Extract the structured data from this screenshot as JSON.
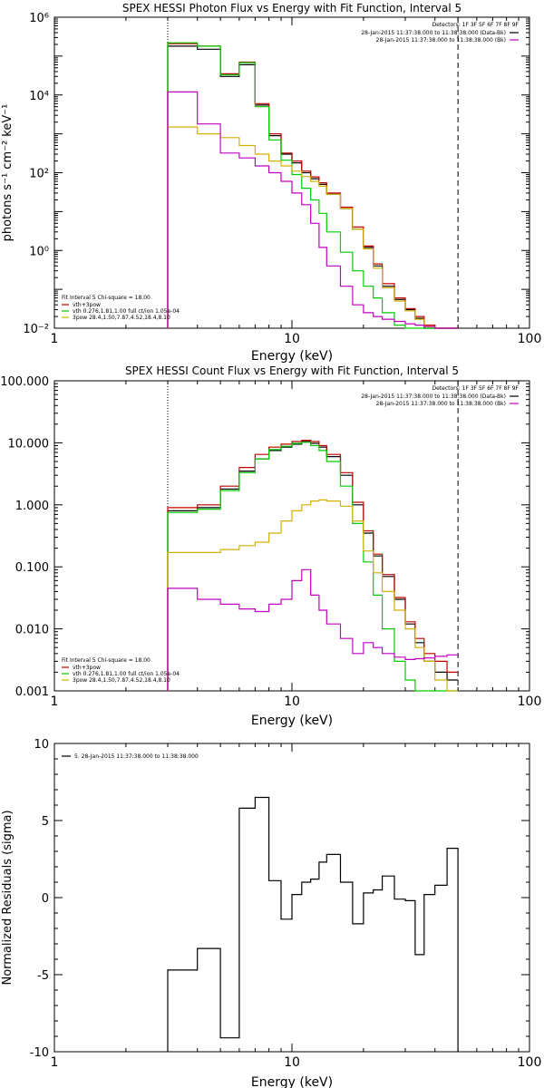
{
  "chart_data": [
    {
      "type": "line",
      "title": "SPEX HESSI Photon Flux vs Energy with Fit Function, Interval 5",
      "xlabel": "Energy (keV)",
      "ylabel": "photons s⁻¹ cm⁻² keV⁻¹",
      "xscale": "log",
      "yscale": "log",
      "xlim": [
        1,
        100
      ],
      "ylim": [
        0.01,
        1000000
      ],
      "x_ticks": [
        {
          "v": 1,
          "t": "1"
        },
        {
          "v": 10,
          "t": "10"
        },
        {
          "v": 100,
          "t": "100"
        }
      ],
      "y_ticks": [
        {
          "v": 0.01,
          "t": "10⁻²"
        },
        {
          "v": 1,
          "t": "10⁰"
        },
        {
          "v": 100,
          "t": "10²"
        },
        {
          "v": 10000,
          "t": "10⁴"
        },
        {
          "v": 1000000,
          "t": "10⁶"
        }
      ],
      "vlines": [
        {
          "x": 3,
          "style": "dotted"
        },
        {
          "x": 50,
          "style": "dashed"
        }
      ],
      "legend_top_right": {
        "header": "Detectors: 1F 3F 5F 6F 7F 8F 9F",
        "entries": [
          {
            "text": "28-Jan-2015 11:37:38.000 to 11:38:38.000 (Data-Bk)",
            "color": "#000000"
          },
          {
            "text": "28-Jan-2015 11:37:38.000 to 11:38:38.000 (Bk)",
            "color": "#c000c0"
          }
        ]
      },
      "legend_bottom_left": {
        "header": "Fit Interval 5   Chi-square = 18.00",
        "entries": [
          {
            "text": "vth+3pow",
            "color": "#c00000"
          },
          {
            "text": "vth 0.276,1.81,1.00  full ct/ion 1.05e-04",
            "color": "#00cc00"
          },
          {
            "text": "3pow 28.4,1.50,7.87,4.52,18.4,8.10",
            "color": "#d4b000"
          }
        ]
      },
      "x_edges": [
        3,
        4,
        5,
        6,
        7,
        8,
        9,
        10,
        11,
        12,
        13,
        14,
        16,
        18,
        20,
        22,
        24,
        27,
        30,
        33,
        36,
        40,
        45,
        50
      ],
      "series": [
        {
          "color": "#000000",
          "values": [
            180000,
            150000,
            30000,
            60000,
            5500,
            900,
            300,
            180,
            100,
            70,
            50,
            28,
            12,
            3.5,
            1.2,
            0.4,
            0.12,
            0.055,
            0.03,
            0.018,
            0.01,
            0.01,
            0.01
          ]
        },
        {
          "color": "#c00000",
          "values": [
            210000,
            180000,
            35000,
            70000,
            6000,
            1000,
            320,
            200,
            110,
            78,
            55,
            30,
            13,
            4,
            1.3,
            0.45,
            0.14,
            0.06,
            0.032,
            0.02,
            0.012,
            0.01,
            0.01
          ]
        },
        {
          "color": "#00cc00",
          "values": [
            220000,
            180000,
            33000,
            68000,
            5000,
            700,
            210,
            90,
            40,
            20,
            9,
            3,
            0.9,
            0.3,
            0.12,
            0.06,
            0.025,
            0.012,
            0.01,
            0.01,
            0.01,
            0.01,
            0.01
          ]
        },
        {
          "color": "#d4b000",
          "values": [
            1500,
            1000,
            800,
            500,
            300,
            200,
            150,
            110,
            80,
            60,
            45,
            28,
            12,
            3.5,
            1.1,
            0.35,
            0.11,
            0.05,
            0.028,
            0.017,
            0.011,
            0.01,
            0.01
          ]
        },
        {
          "color": "#c000c0",
          "values": [
            12000,
            1800,
            320,
            240,
            150,
            100,
            60,
            30,
            15,
            5,
            1.2,
            0.4,
            0.12,
            0.04,
            0.025,
            0.02,
            0.017,
            0.015,
            0.013,
            0.012,
            0.011,
            0.01,
            0.01
          ]
        }
      ]
    },
    {
      "type": "line",
      "title": "SPEX HESSI Count Flux vs Energy with Fit Function, Interval 5",
      "xlabel": "Energy (keV)",
      "ylabel": "",
      "xscale": "log",
      "yscale": "log",
      "xlim": [
        1,
        100
      ],
      "ylim": [
        0.001,
        100
      ],
      "x_ticks": [
        {
          "v": 1,
          "t": "1"
        },
        {
          "v": 10,
          "t": "10"
        },
        {
          "v": 100,
          "t": "100"
        }
      ],
      "y_ticks": [
        {
          "v": 0.001,
          "t": "0.001"
        },
        {
          "v": 0.01,
          "t": "0.010"
        },
        {
          "v": 0.1,
          "t": "0.100"
        },
        {
          "v": 1,
          "t": "1.000"
        },
        {
          "v": 10,
          "t": "10.000"
        },
        {
          "v": 100,
          "t": "100.000"
        }
      ],
      "vlines": [
        {
          "x": 3,
          "style": "dotted"
        },
        {
          "x": 50,
          "style": "dashed"
        }
      ],
      "legend_top_right": {
        "header": "Detectors: 1F 3F 5F 6F 7F 8F 9F",
        "entries": [
          {
            "text": "28-Jan-2015 11:37:38.000 to 11:38:38.000 (Data-Bk)",
            "color": "#000000"
          },
          {
            "text": "28-Jan-2015 11:37:38.000 to 11:38:38.000 (Bk)",
            "color": "#c000c0"
          }
        ]
      },
      "legend_bottom_left": {
        "header": "Fit Interval 5   Chi-square = 18.00",
        "entries": [
          {
            "text": "vth+3pow",
            "color": "#c00000"
          },
          {
            "text": "vth 0.276,1.81,1.00  full ct/ion 1.05e-04",
            "color": "#00cc00"
          },
          {
            "text": "3pow 28.4,1.50,7.87,4.52,18.4,8.10",
            "color": "#d4b000"
          }
        ]
      },
      "x_edges": [
        3,
        4,
        5,
        6,
        7,
        8,
        9,
        10,
        11,
        12,
        13,
        14,
        16,
        18,
        20,
        22,
        24,
        27,
        30,
        33,
        36,
        40,
        45,
        50
      ],
      "series": [
        {
          "color": "#000000",
          "values": [
            0.8,
            0.9,
            1.8,
            3.5,
            5.5,
            7.5,
            8.5,
            9.5,
            10.5,
            9.8,
            8.5,
            6.0,
            3.0,
            1.0,
            0.35,
            0.15,
            0.07,
            0.03,
            0.012,
            0.006,
            0.003,
            0.002,
            0.0015
          ]
        },
        {
          "color": "#c00000",
          "values": [
            0.9,
            1.0,
            2.0,
            4.0,
            6.5,
            8.5,
            9.5,
            10.5,
            11.0,
            10.5,
            9.0,
            6.5,
            3.3,
            1.1,
            0.38,
            0.16,
            0.075,
            0.032,
            0.013,
            0.007,
            0.004,
            0.003,
            0.002
          ]
        },
        {
          "color": "#00cc00",
          "values": [
            0.75,
            0.85,
            1.7,
            3.3,
            5.5,
            7.8,
            8.8,
            9.8,
            10.2,
            9.0,
            7.5,
            5.0,
            2.0,
            0.5,
            0.12,
            0.035,
            0.01,
            0.003,
            0.0015,
            0.001,
            0.001,
            0.001,
            0.001
          ]
        },
        {
          "color": "#d4b000",
          "values": [
            0.17,
            0.17,
            0.19,
            0.22,
            0.25,
            0.35,
            0.55,
            0.8,
            1.0,
            1.15,
            1.2,
            1.15,
            0.95,
            0.55,
            0.18,
            0.08,
            0.04,
            0.02,
            0.01,
            0.005,
            0.003,
            0.0015,
            0.001
          ]
        },
        {
          "color": "#c000c0",
          "values": [
            0.045,
            0.03,
            0.025,
            0.021,
            0.019,
            0.025,
            0.03,
            0.06,
            0.09,
            0.035,
            0.02,
            0.012,
            0.007,
            0.004,
            0.006,
            0.005,
            0.004,
            0.0035,
            0.0032,
            0.0033,
            0.0034,
            0.0036,
            0.0038
          ]
        }
      ]
    },
    {
      "type": "line",
      "title": "",
      "xlabel": "Energy (keV)",
      "ylabel": "Normalized Residuals (sigma)",
      "xscale": "log",
      "yscale": "linear",
      "xlim": [
        1,
        100
      ],
      "ylim": [
        -10,
        10
      ],
      "x_ticks": [
        {
          "v": 1,
          "t": "1"
        },
        {
          "v": 10,
          "t": "10"
        },
        {
          "v": 100,
          "t": "100"
        }
      ],
      "y_ticks": [
        {
          "v": -10,
          "t": "-10"
        },
        {
          "v": -5,
          "t": "-5"
        },
        {
          "v": 0,
          "t": "0"
        },
        {
          "v": 5,
          "t": "5"
        },
        {
          "v": 10,
          "t": "10"
        }
      ],
      "legend_top_left": {
        "entries": [
          {
            "text": "5. 28-Jan-2015 11:37:38.000 to 11:38:38.000",
            "color": "#000000"
          }
        ]
      },
      "x_edges": [
        3,
        4,
        5,
        6,
        7,
        8,
        9,
        10,
        11,
        12,
        13,
        14,
        16,
        18,
        20,
        22,
        24,
        27,
        30,
        33,
        36,
        40,
        45,
        50
      ],
      "series": [
        {
          "color": "#000000",
          "values": [
            -4.7,
            -3.3,
            -9.1,
            5.8,
            6.5,
            1.1,
            -1.4,
            0.2,
            1.0,
            1.2,
            2.3,
            2.8,
            1.0,
            -1.7,
            0.3,
            0.5,
            1.4,
            -0.1,
            -0.2,
            -3.7,
            0.2,
            0.8,
            3.2
          ]
        }
      ]
    }
  ]
}
